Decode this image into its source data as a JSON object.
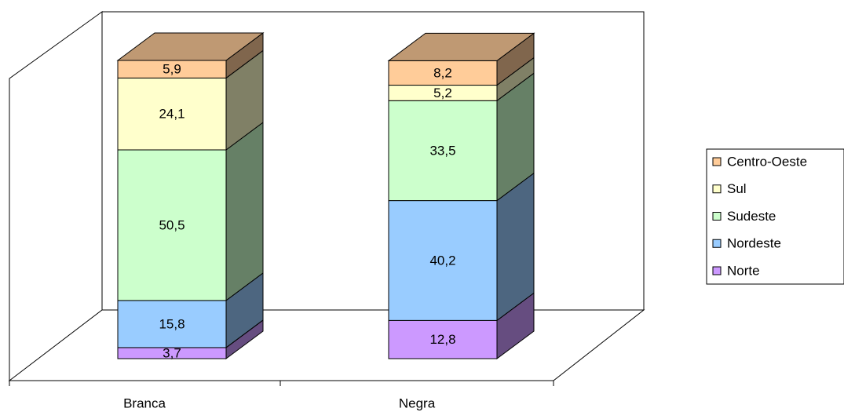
{
  "chart_data": {
    "type": "stacked-bar-3d",
    "categories": [
      "Branca",
      "Negra"
    ],
    "ylim": [
      0,
      100
    ],
    "legend": "right",
    "series": [
      {
        "name": "Norte",
        "color": "#cc99ff",
        "values": [
          3.7,
          12.8
        ],
        "value_labels": [
          "3,7",
          "12,8"
        ]
      },
      {
        "name": "Nordeste",
        "color": "#99ccff",
        "values": [
          15.8,
          40.2
        ],
        "value_labels": [
          "15,8",
          "40,2"
        ]
      },
      {
        "name": "Sudeste",
        "color": "#ccffcc",
        "values": [
          50.5,
          33.5
        ],
        "value_labels": [
          "50,5",
          "33,5"
        ]
      },
      {
        "name": "Sul",
        "color": "#ffffcc",
        "values": [
          24.1,
          5.2
        ],
        "value_labels": [
          "24,1",
          "5,2"
        ]
      },
      {
        "name": "Centro-Oeste",
        "color": "#ffcc99",
        "values": [
          5.9,
          8.2
        ],
        "value_labels": [
          "5,9",
          "8,2"
        ]
      }
    ]
  }
}
